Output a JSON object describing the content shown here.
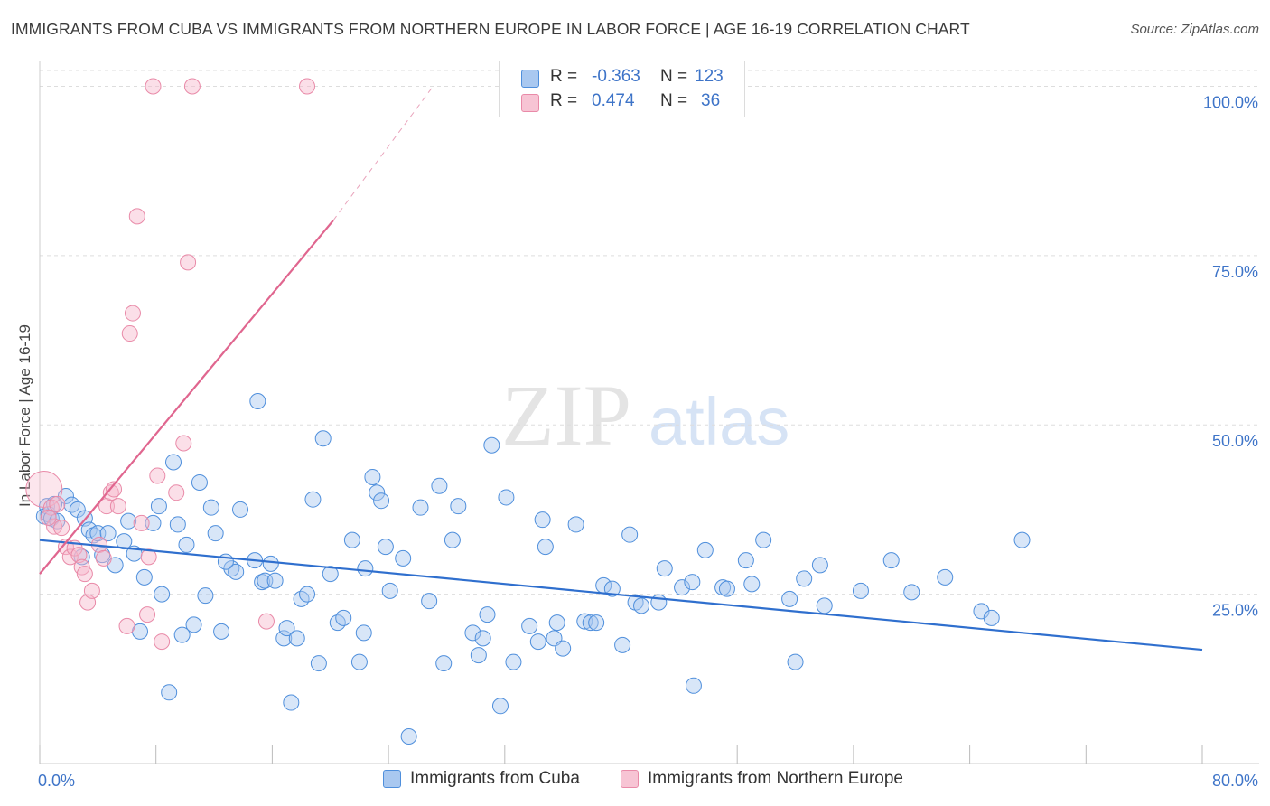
{
  "title": "IMMIGRANTS FROM CUBA VS IMMIGRANTS FROM NORTHERN EUROPE IN LABOR FORCE | AGE 16-19 CORRELATION CHART",
  "source": "Source: ZipAtlas.com",
  "watermark": {
    "zip": "ZIP",
    "atlas": "atlas"
  },
  "colors": {
    "cuba_fill": "#a9c8f0",
    "cuba_stroke": "#4f8fdc",
    "cuba_line": "#2f6fce",
    "ne_fill": "#f7b8cb",
    "ne_stroke": "#e98aa8",
    "ne_line": "#e0668f",
    "axis_label": "#3e74c8",
    "grid": "#dddddd"
  },
  "stats": {
    "cuba": {
      "r_label": "R =",
      "r_value": "-0.363",
      "n_label": "N =",
      "n_value": "123"
    },
    "ne": {
      "r_label": "R =",
      "r_value": "0.474",
      "n_label": "N =",
      "n_value": "36"
    }
  },
  "chart_data": {
    "type": "scatter",
    "title": "IMMIGRANTS FROM CUBA VS IMMIGRANTS FROM NORTHERN EUROPE IN LABOR FORCE | AGE 16-19 CORRELATION CHART",
    "xlabel": "",
    "ylabel": "In Labor Force | Age 16-19",
    "xlim": [
      0,
      80
    ],
    "ylim": [
      0,
      103
    ],
    "x_tick_labels": [
      {
        "value": 0,
        "label": "0.0%"
      },
      {
        "value": 80,
        "label": "80.0%"
      }
    ],
    "y_tick_labels": [
      {
        "value": 25,
        "label": "25.0%"
      },
      {
        "value": 50,
        "label": "50.0%"
      },
      {
        "value": 75,
        "label": "75.0%"
      },
      {
        "value": 100,
        "label": "100.0%"
      }
    ],
    "x_ticks": [
      0,
      8,
      16,
      24,
      32,
      40,
      48,
      56,
      64,
      72,
      80
    ],
    "grid": true,
    "series": [
      {
        "name": "Immigrants from Cuba",
        "trend": {
          "x": [
            0,
            80
          ],
          "y": [
            33.0,
            16.8
          ]
        },
        "points": [
          [
            0.3,
            36.5
          ],
          [
            0.5,
            38.0
          ],
          [
            0.6,
            36.8
          ],
          [
            0.8,
            36.2
          ],
          [
            1.0,
            38.3
          ],
          [
            1.2,
            35.8
          ],
          [
            1.8,
            39.5
          ],
          [
            2.2,
            38.2
          ],
          [
            2.6,
            37.5
          ],
          [
            2.9,
            30.5
          ],
          [
            3.1,
            36.2
          ],
          [
            3.4,
            34.5
          ],
          [
            3.7,
            33.7
          ],
          [
            4.0,
            34.0
          ],
          [
            4.3,
            30.8
          ],
          [
            4.7,
            34.0
          ],
          [
            5.2,
            29.3
          ],
          [
            5.8,
            32.8
          ],
          [
            6.1,
            35.8
          ],
          [
            6.9,
            19.5
          ],
          [
            7.2,
            27.5
          ],
          [
            7.8,
            35.5
          ],
          [
            8.2,
            38.0
          ],
          [
            8.4,
            25.0
          ],
          [
            8.9,
            10.5
          ],
          [
            9.2,
            44.5
          ],
          [
            9.5,
            35.3
          ],
          [
            9.8,
            19.0
          ],
          [
            10.1,
            32.3
          ],
          [
            10.6,
            20.5
          ],
          [
            11.0,
            41.5
          ],
          [
            11.4,
            24.8
          ],
          [
            11.8,
            37.8
          ],
          [
            12.1,
            34.0
          ],
          [
            12.5,
            19.5
          ],
          [
            13.2,
            28.8
          ],
          [
            13.5,
            28.3
          ],
          [
            13.8,
            37.5
          ],
          [
            14.8,
            30.0
          ],
          [
            15.0,
            53.5
          ],
          [
            15.3,
            26.8
          ],
          [
            15.5,
            27.0
          ],
          [
            15.9,
            29.5
          ],
          [
            16.2,
            27.0
          ],
          [
            16.8,
            18.5
          ],
          [
            17.0,
            20.0
          ],
          [
            17.3,
            9.0
          ],
          [
            17.7,
            18.5
          ],
          [
            18.0,
            24.3
          ],
          [
            18.4,
            25.0
          ],
          [
            18.8,
            39.0
          ],
          [
            19.2,
            14.8
          ],
          [
            19.5,
            48.0
          ],
          [
            20.0,
            28.0
          ],
          [
            20.5,
            20.8
          ],
          [
            20.9,
            21.5
          ],
          [
            21.5,
            33.0
          ],
          [
            22.0,
            15.0
          ],
          [
            22.3,
            19.3
          ],
          [
            22.9,
            42.3
          ],
          [
            23.2,
            40.0
          ],
          [
            23.5,
            38.8
          ],
          [
            23.8,
            32.0
          ],
          [
            24.1,
            25.5
          ],
          [
            25.4,
            4.0
          ],
          [
            26.2,
            37.8
          ],
          [
            27.5,
            41.0
          ],
          [
            27.8,
            14.8
          ],
          [
            28.4,
            33.0
          ],
          [
            28.8,
            38.0
          ],
          [
            29.8,
            19.3
          ],
          [
            30.2,
            16.0
          ],
          [
            30.5,
            18.5
          ],
          [
            30.8,
            22.0
          ],
          [
            31.1,
            47.0
          ],
          [
            31.7,
            8.5
          ],
          [
            32.1,
            39.3
          ],
          [
            32.6,
            15.0
          ],
          [
            33.7,
            20.3
          ],
          [
            34.3,
            18.0
          ],
          [
            34.8,
            32.0
          ],
          [
            34.6,
            36.0
          ],
          [
            35.4,
            18.5
          ],
          [
            35.6,
            20.8
          ],
          [
            36.9,
            35.3
          ],
          [
            37.5,
            21.0
          ],
          [
            37.9,
            20.8
          ],
          [
            38.3,
            20.8
          ],
          [
            38.8,
            26.3
          ],
          [
            39.4,
            25.8
          ],
          [
            40.1,
            17.5
          ],
          [
            41.0,
            23.8
          ],
          [
            41.4,
            23.3
          ],
          [
            42.6,
            23.8
          ],
          [
            45.0,
            11.5
          ],
          [
            44.2,
            26.0
          ],
          [
            44.9,
            26.8
          ],
          [
            47.0,
            26.0
          ],
          [
            47.3,
            25.8
          ],
          [
            49.0,
            26.5
          ],
          [
            48.6,
            30.0
          ],
          [
            51.6,
            24.3
          ],
          [
            52.0,
            15.0
          ],
          [
            52.6,
            27.3
          ],
          [
            54.0,
            23.3
          ],
          [
            56.5,
            25.5
          ],
          [
            60.0,
            25.3
          ],
          [
            64.8,
            22.5
          ],
          [
            65.5,
            21.5
          ],
          [
            67.6,
            33.0
          ],
          [
            62.3,
            27.5
          ],
          [
            58.6,
            30.0
          ],
          [
            53.7,
            29.3
          ],
          [
            49.8,
            33.0
          ],
          [
            45.8,
            31.5
          ],
          [
            43.0,
            28.8
          ],
          [
            40.6,
            33.8
          ],
          [
            36.0,
            17.0
          ],
          [
            26.8,
            24.0
          ],
          [
            25.0,
            30.3
          ],
          [
            22.4,
            28.8
          ],
          [
            12.8,
            29.8
          ],
          [
            6.5,
            31.0
          ]
        ]
      },
      {
        "name": "Immigrants from Northern Europe",
        "trend": {
          "x": [
            0,
            20.2
          ],
          "y": [
            28.0,
            80.2
          ]
        },
        "trend_dashed": {
          "x": [
            20.2,
            27.0
          ],
          "y": [
            80.2,
            99.8
          ]
        },
        "points": [
          [
            0.3,
            40.5
          ],
          [
            0.8,
            37.8
          ],
          [
            1.0,
            35.0
          ],
          [
            1.2,
            38.3
          ],
          [
            1.5,
            34.8
          ],
          [
            1.8,
            32.0
          ],
          [
            2.1,
            30.5
          ],
          [
            2.4,
            31.8
          ],
          [
            2.7,
            30.8
          ],
          [
            2.9,
            29.0
          ],
          [
            3.1,
            28.0
          ],
          [
            3.3,
            23.8
          ],
          [
            3.6,
            25.5
          ],
          [
            4.1,
            32.3
          ],
          [
            4.4,
            30.3
          ],
          [
            4.6,
            38.0
          ],
          [
            4.9,
            40.0
          ],
          [
            5.1,
            40.5
          ],
          [
            5.4,
            38.0
          ],
          [
            6.0,
            20.3
          ],
          [
            6.2,
            63.5
          ],
          [
            6.4,
            66.5
          ],
          [
            6.7,
            80.8
          ],
          [
            7.0,
            35.5
          ],
          [
            7.4,
            22.0
          ],
          [
            7.5,
            30.5
          ],
          [
            7.8,
            100.0
          ],
          [
            8.1,
            42.5
          ],
          [
            8.4,
            18.0
          ],
          [
            9.4,
            40.0
          ],
          [
            9.9,
            47.3
          ],
          [
            10.2,
            74.0
          ],
          [
            10.5,
            100.0
          ],
          [
            15.6,
            21.0
          ],
          [
            18.4,
            100.0
          ],
          [
            0.6,
            36.3
          ]
        ]
      }
    ]
  },
  "legend": {
    "cuba_label": "Immigrants from Cuba",
    "ne_label": "Immigrants from Northern Europe"
  }
}
